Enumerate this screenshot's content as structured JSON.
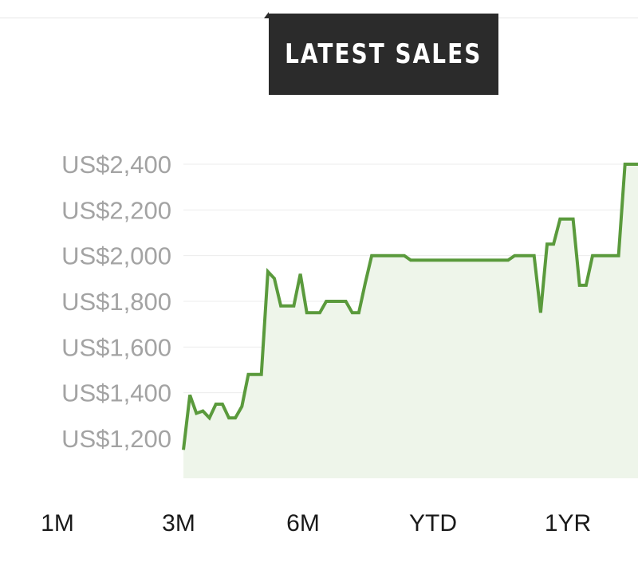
{
  "header": {
    "title": "LATEST SALES"
  },
  "range_tabs": [
    "1M",
    "3M",
    "6M",
    "YTD",
    "1YR"
  ],
  "colors": {
    "line": "#5a9a3c",
    "area": "#eef5ea",
    "badge_bg": "#2b2b2b",
    "axis_label": "#a3a3a3"
  },
  "chart_data": {
    "type": "area",
    "title": "LATEST SALES",
    "xlabel": "",
    "ylabel": "",
    "ylim": [
      1100,
      2400
    ],
    "y_ticks": [
      {
        "value": 1200,
        "label": "US$1,200"
      },
      {
        "value": 1400,
        "label": "US$1,400"
      },
      {
        "value": 1600,
        "label": "US$1,600"
      },
      {
        "value": 1800,
        "label": "US$1,800"
      },
      {
        "value": 2000,
        "label": "US$2,000"
      },
      {
        "value": 2200,
        "label": "US$2,200"
      },
      {
        "value": 2400,
        "label": "US$2,400"
      }
    ],
    "grid": true,
    "series": [
      {
        "values": [
          1150,
          1390,
          1310,
          1320,
          1290,
          1350,
          1350,
          1290,
          1290,
          1340,
          1480,
          1480,
          1480,
          1930,
          1900,
          1780,
          1780,
          1780,
          1920,
          1750,
          1750,
          1750,
          1800,
          1800,
          1800,
          1800,
          1750,
          1750,
          1880,
          2000,
          2000,
          2000,
          2000,
          2000,
          2000,
          1980,
          1980,
          1980,
          1980,
          1980,
          1980,
          1980,
          1980,
          1980,
          1980,
          1980,
          1980,
          1980,
          1980,
          1980,
          1980,
          2000,
          2000,
          2000,
          2000,
          1750,
          2050,
          2050,
          2160,
          2160,
          2160,
          1870,
          1870,
          2000,
          2000,
          2000,
          2000,
          2000,
          2400,
          2400,
          2400
        ]
      }
    ]
  }
}
